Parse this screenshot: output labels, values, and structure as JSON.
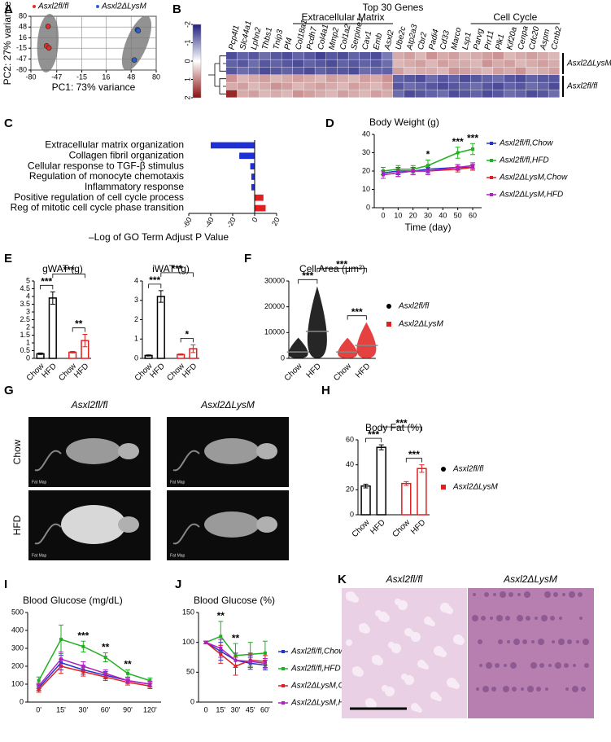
{
  "chart_data": [
    {
      "label": "A",
      "type": "scatter",
      "xlabel": "PC1: 73% variance",
      "ylabel": "PC2: 27% variance",
      "xlim": [
        -80,
        80
      ],
      "xticks": [
        -80,
        -47,
        -15,
        16,
        48,
        80
      ],
      "ylim": [
        -80,
        80
      ],
      "yticks": [
        -80,
        -47,
        -15,
        16,
        48,
        80
      ],
      "grid": true,
      "series": [
        {
          "name": "Asxl2fl/fl",
          "color": "#e0302a",
          "x": [
            -58,
            -60,
            -57
          ],
          "values": [
            50,
            -8,
            -14
          ]
        },
        {
          "name": "Asxl2ΔLysM",
          "color": "#2b5fd0",
          "x": [
            56,
            57,
            52
          ],
          "values": [
            40,
            37,
            -50
          ]
        }
      ]
    },
    {
      "label": "B",
      "type": "heatmap",
      "title": "Top 30 Genes",
      "groups": [
        {
          "name": "Extracellular Matrix",
          "from": 6,
          "to": 14
        },
        {
          "name": "Cell Cycle",
          "from": 22,
          "to": 29
        }
      ],
      "categories": [
        "Pcp4l1",
        "Slc44a1",
        "Lphn2",
        "Thbs1",
        "Tnip3",
        "Pf4",
        "Col18a1",
        "Pcdh7",
        "Col4a1",
        "Mmp2",
        "Col1a2",
        "Serpine1",
        "Cav1",
        "Emb",
        "Asxl2",
        "Ube2c",
        "Atp2a3",
        "Cbr2",
        "Padi4",
        "Cd33",
        "Marco",
        "Lsp1",
        "Parvg",
        "Prr11",
        "Plk1",
        "Kif20a",
        "Cenpa",
        "Cdc20",
        "Aspm",
        "Ccnb2"
      ],
      "row_groups": [
        {
          "name": "Asxl2ΔLysM",
          "count": 3
        },
        {
          "name": "Asxl2fl/fl",
          "count": 3
        }
      ],
      "zlim": [
        -2,
        2
      ],
      "zticks": [
        -2,
        -1,
        0,
        1,
        2
      ],
      "colors": [
        "#1f1f80",
        "#ffffff",
        "#8b1010"
      ],
      "values": [
        [
          -1.6,
          -1.4,
          -1.5,
          -1.3,
          -1.5,
          -1.6,
          -1.4,
          -1.5,
          -1.7,
          -1.5,
          -1.6,
          -1.4,
          -1.5,
          -1.6,
          -1.2,
          0.7,
          0.8,
          0.6,
          0.9,
          0.7,
          0.8,
          0.6,
          0.7,
          0.8,
          0.9,
          0.6,
          0.7,
          0.8,
          0.7,
          0.6
        ],
        [
          -1.4,
          -1.5,
          -1.3,
          -1.5,
          -1.4,
          -1.5,
          -1.6,
          -1.4,
          -1.5,
          -1.6,
          -1.4,
          -1.5,
          -1.4,
          -1.5,
          -1.3,
          0.6,
          0.7,
          0.8,
          0.6,
          0.8,
          0.7,
          0.7,
          0.6,
          0.9,
          0.7,
          0.8,
          0.6,
          0.7,
          0.8,
          0.7
        ],
        [
          -1.5,
          -1.3,
          -1.4,
          -1.6,
          -1.5,
          -1.4,
          -1.5,
          -1.6,
          -1.4,
          -1.5,
          -1.5,
          -1.6,
          -1.3,
          -1.4,
          -1.4,
          0.8,
          0.6,
          0.7,
          0.7,
          0.6,
          0.9,
          0.8,
          0.7,
          0.6,
          0.8,
          0.7,
          0.9,
          0.6,
          0.7,
          0.8
        ],
        [
          0.9,
          0.6,
          0.7,
          0.8,
          0.6,
          0.7,
          0.8,
          0.7,
          0.6,
          0.8,
          0.7,
          0.6,
          0.8,
          0.7,
          0.9,
          -1.4,
          -1.5,
          -1.6,
          -1.3,
          -1.5,
          -1.4,
          -1.6,
          -1.5,
          -1.4,
          -1.3,
          -1.5,
          -1.6,
          -1.4,
          -1.5,
          -1.5
        ],
        [
          0.7,
          0.8,
          0.6,
          0.7,
          0.9,
          0.8,
          0.6,
          0.7,
          0.8,
          0.7,
          0.6,
          0.8,
          0.7,
          0.6,
          0.8,
          -1.5,
          -1.3,
          -1.4,
          -1.5,
          -1.6,
          -1.5,
          -1.4,
          -1.3,
          -1.5,
          -1.6,
          -1.4,
          -1.5,
          -1.3,
          -1.4,
          -1.6
        ],
        [
          1.8,
          0.7,
          0.8,
          0.6,
          0.7,
          0.6,
          0.9,
          0.8,
          0.7,
          0.6,
          0.8,
          0.7,
          0.6,
          0.8,
          0.7,
          -1.3,
          -1.6,
          -1.5,
          -1.4,
          -1.3,
          -1.6,
          -1.5,
          -1.4,
          -1.6,
          -1.5,
          -1.3,
          -1.4,
          -1.6,
          -1.5,
          -1.3
        ]
      ]
    },
    {
      "label": "C",
      "type": "hbar",
      "xlabel": "–Log of GO Term Adjust P Value",
      "categories": [
        "Extracellular matrix organization",
        "Collagen fibril organization",
        "Cellular response to TGF-β stimulus",
        "Regulation of monocyte chemotaxis",
        "Inflammatory response",
        "Positive regulation of cell cycle process",
        "Reg of mitotic cell cycle phase transition"
      ],
      "values": [
        -40,
        -14,
        -4,
        -3,
        -3,
        8,
        10
      ],
      "colors": [
        "#1f2fd6",
        "#1f2fd6",
        "#1f2fd6",
        "#1f2fd6",
        "#1f2fd6",
        "#e02020",
        "#e02020"
      ],
      "xlim": [
        -60,
        20
      ],
      "xticks": [
        -60,
        -40,
        -20,
        0,
        20
      ]
    },
    {
      "label": "D",
      "type": "line",
      "title": "Body Weight (g)",
      "xlabel": "Time (day)",
      "x": [
        0,
        10,
        20,
        30,
        50,
        60
      ],
      "xlim": [
        -6,
        66
      ],
      "xticks": [
        0,
        10,
        20,
        30,
        40,
        50,
        60
      ],
      "ylim": [
        0,
        40
      ],
      "yticks": [
        0,
        10,
        20,
        30,
        40
      ],
      "series": [
        {
          "name": "Asxl2fl/fl,Chow",
          "color": "#2233cc",
          "values": [
            19,
            20,
            20,
            21,
            22,
            22
          ],
          "errors": [
            3,
            2,
            2,
            2,
            1.5,
            1.5
          ]
        },
        {
          "name": "Asxl2fl/fl,HFD",
          "color": "#22b022",
          "values": [
            20,
            21,
            21,
            23,
            30,
            32
          ],
          "errors": [
            2,
            2,
            2,
            3,
            3,
            3
          ]
        },
        {
          "name": "Asxl2ΔLysM,Chow",
          "color": "#e02020",
          "values": [
            18,
            19,
            20,
            20,
            21,
            22
          ],
          "errors": [
            2,
            2,
            2,
            2,
            1.5,
            1.5
          ]
        },
        {
          "name": "Asxl2ΔLysM,HFD",
          "color": "#b020c0",
          "values": [
            18,
            19,
            20,
            20,
            22,
            23
          ],
          "errors": [
            2,
            2,
            2,
            2,
            1.5,
            1.5
          ]
        }
      ],
      "annotations": [
        {
          "at": 3,
          "text": "*"
        },
        {
          "at": 4,
          "text": "***"
        },
        {
          "at": 5,
          "text": "***"
        }
      ]
    },
    {
      "label": "E",
      "type": "bar",
      "title": "gWAT (g)",
      "categories": [
        "Chow",
        "HFD",
        "Chow",
        "HFD"
      ],
      "values": [
        0.3,
        3.9,
        0.4,
        1.15
      ],
      "errors": [
        0.05,
        0.4,
        0.05,
        0.4
      ],
      "colors": [
        "#000000",
        "#000000",
        "#e02020",
        "#e02020"
      ],
      "ylim": [
        0,
        5
      ],
      "yticks": [
        0,
        0.5,
        1,
        1.5,
        2,
        2.5,
        3,
        3.5,
        4,
        4.5,
        5
      ],
      "brackets": [
        {
          "from": 0,
          "to": 1,
          "text": "***"
        },
        {
          "from": 2,
          "to": 3,
          "text": "**"
        },
        {
          "from": 1,
          "to": 3,
          "text": "***"
        }
      ]
    },
    {
      "type": "bar",
      "title": "iWAT (g)",
      "categories": [
        "Chow",
        "HFD",
        "Chow",
        "HFD"
      ],
      "values": [
        0.15,
        3.2,
        0.2,
        0.5
      ],
      "errors": [
        0.03,
        0.3,
        0.03,
        0.2
      ],
      "colors": [
        "#000000",
        "#000000",
        "#e02020",
        "#e02020"
      ],
      "ylim": [
        0,
        4
      ],
      "yticks": [
        0,
        1,
        2,
        3,
        4
      ],
      "brackets": [
        {
          "from": 0,
          "to": 1,
          "text": "***"
        },
        {
          "from": 2,
          "to": 3,
          "text": "*"
        },
        {
          "from": 1,
          "to": 3,
          "text": "***"
        }
      ]
    },
    {
      "label": "F",
      "type": "dotplot",
      "title": "Cell Area (μm²)",
      "categories": [
        "Chow",
        "HFD",
        "Chow",
        "HFD"
      ],
      "values": [
        2500,
        10500,
        2500,
        5000
      ],
      "max": [
        8000,
        28000,
        8000,
        14000
      ],
      "colors": [
        "#000000",
        "#000000",
        "#e02020",
        "#e02020"
      ],
      "ylim": [
        0,
        30000
      ],
      "yticks": [
        0,
        10000,
        20000,
        30000
      ],
      "brackets": [
        {
          "from": 0,
          "to": 1,
          "text": "***"
        },
        {
          "from": 2,
          "to": 3,
          "text": "***"
        },
        {
          "from": 1,
          "to": 3,
          "text": "***"
        }
      ],
      "legend": [
        {
          "name": "Asxl2fl/fl",
          "color": "#000000"
        },
        {
          "name": "Asxl2ΔLysM",
          "color": "#e02020"
        }
      ]
    },
    {
      "label": "H",
      "type": "bar",
      "title": "Body Fat (%)",
      "categories": [
        "Chow",
        "HFD",
        "Chow",
        "HFD"
      ],
      "values": [
        23,
        54,
        25,
        37
      ],
      "errors": [
        1.5,
        2,
        1.5,
        3
      ],
      "colors": [
        "#000000",
        "#000000",
        "#e02020",
        "#e02020"
      ],
      "ylim": [
        0,
        60
      ],
      "yticks": [
        0,
        20,
        40,
        60
      ],
      "brackets": [
        {
          "from": 0,
          "to": 1,
          "text": "***"
        },
        {
          "from": 2,
          "to": 3,
          "text": "***"
        },
        {
          "from": 1,
          "to": 3,
          "text": "***"
        }
      ],
      "legend": [
        {
          "name": "Asxl2fl/fl",
          "color": "#000000"
        },
        {
          "name": "Asxl2ΔLysM",
          "color": "#e02020"
        }
      ]
    },
    {
      "label": "I",
      "type": "line",
      "title": "Blood Glucose (mg/dL)",
      "categories": [
        "0'",
        "15'",
        "30'",
        "60'",
        "90'",
        "120'"
      ],
      "ylim": [
        0,
        500
      ],
      "yticks": [
        0,
        100,
        200,
        300,
        400,
        500
      ],
      "series": [
        {
          "color": "#2233cc",
          "values": [
            80,
            220,
            180,
            150,
            120,
            100
          ],
          "errors": [
            15,
            40,
            25,
            20,
            15,
            15
          ]
        },
        {
          "color": "#22b022",
          "values": [
            120,
            350,
            310,
            250,
            160,
            120
          ],
          "errors": [
            20,
            80,
            30,
            25,
            20,
            15
          ]
        },
        {
          "color": "#e02020",
          "values": [
            70,
            200,
            170,
            140,
            110,
            90
          ],
          "errors": [
            15,
            40,
            25,
            20,
            15,
            15
          ]
        },
        {
          "color": "#b020c0",
          "values": [
            90,
            240,
            200,
            160,
            120,
            100
          ],
          "errors": [
            15,
            40,
            25,
            20,
            15,
            15
          ]
        }
      ],
      "annotations": [
        {
          "at": 2,
          "text": "***"
        },
        {
          "at": 3,
          "text": "**"
        },
        {
          "at": 4,
          "text": "**"
        }
      ]
    },
    {
      "label": "J",
      "type": "line",
      "title": "Blood Glucose (%)",
      "categories": [
        "0",
        "15'",
        "30'",
        "45'",
        "60'"
      ],
      "ylim": [
        0,
        150
      ],
      "yticks": [
        0,
        50,
        100,
        150
      ],
      "series": [
        {
          "name": "Asxl2fl/fl,Chow",
          "color": "#2233cc",
          "values": [
            100,
            85,
            70,
            65,
            62
          ],
          "errors": [
            2,
            15,
            12,
            10,
            8
          ]
        },
        {
          "name": "Asxl2fl/fl,HFD",
          "color": "#22b022",
          "values": [
            100,
            110,
            78,
            80,
            82
          ],
          "errors": [
            2,
            25,
            20,
            20,
            20
          ]
        },
        {
          "name": "Asxl2ΔLysM,Chow",
          "color": "#e02020",
          "values": [
            100,
            80,
            60,
            70,
            68
          ],
          "errors": [
            2,
            15,
            15,
            12,
            10
          ]
        },
        {
          "name": "Asxl2ΔLysM,HFD",
          "color": "#b020c0",
          "values": [
            100,
            90,
            70,
            68,
            65
          ],
          "errors": [
            2,
            15,
            12,
            10,
            8
          ]
        }
      ],
      "annotations": [
        {
          "at": 1,
          "text": "**"
        },
        {
          "at": 2,
          "text": "**"
        }
      ]
    }
  ],
  "images": [
    {
      "label": "G",
      "columns": [
        "Asxl2fl/fl",
        "Asxl2ΔLysM"
      ],
      "rows": [
        "Chow",
        "HFD"
      ],
      "caption": "Fat Map"
    },
    {
      "label": "K",
      "columns": [
        "Asxl2fl/fl",
        "Asxl2ΔLysM"
      ]
    }
  ]
}
